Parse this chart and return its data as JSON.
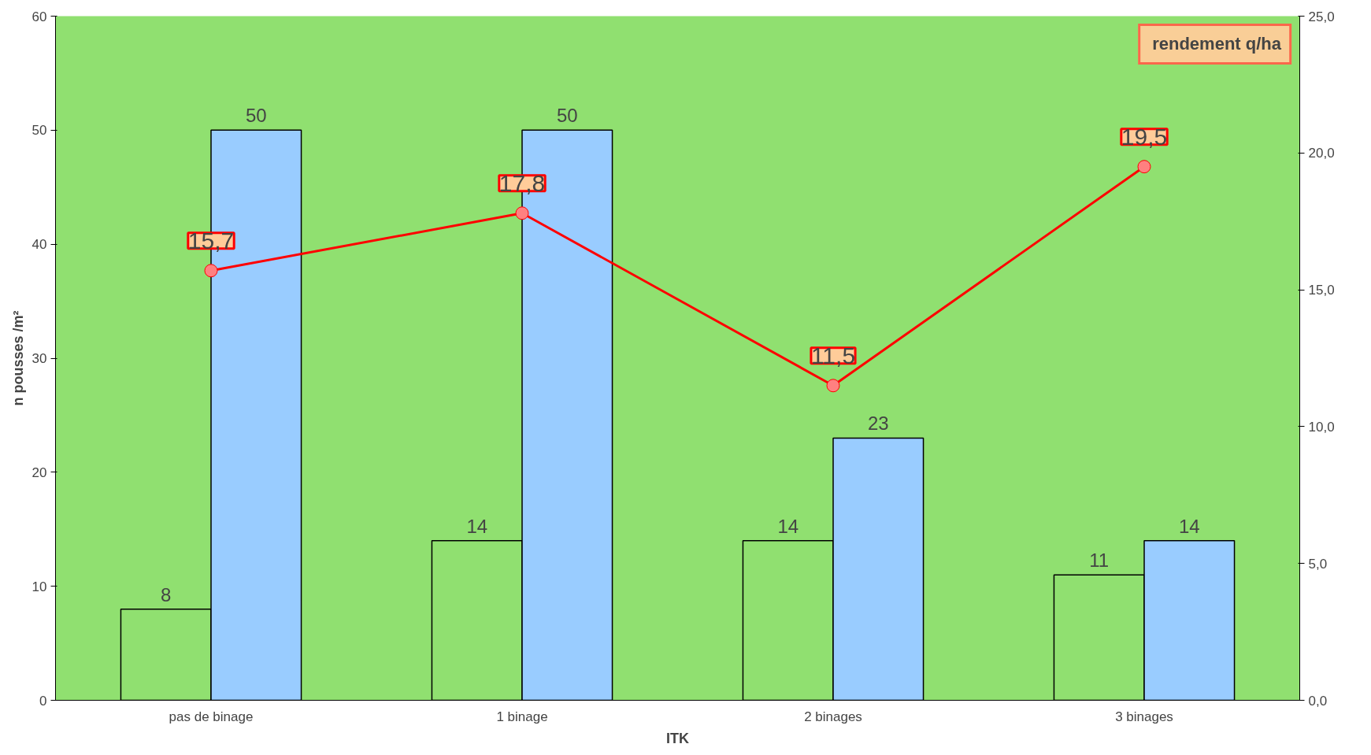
{
  "chart_data": {
    "type": "bar",
    "xlabel": "ITK",
    "ylabel": "n pousses /m²",
    "categories": [
      "pas de binage",
      "1 binage",
      "2 binages",
      "3 binages"
    ],
    "series": [
      {
        "color": "#90e070",
        "values": [
          8,
          14,
          14,
          11
        ]
      },
      {
        "color": "#99ccff",
        "values": [
          50,
          50,
          23,
          14
        ]
      },
      {
        "type": "line",
        "name": "rendement q/ha",
        "axis": "y2",
        "color": "#ff0000",
        "values": [
          15.7,
          17.8,
          11.5,
          19.5
        ],
        "value_labels": [
          "15,7",
          "17,8",
          "11,5",
          "19,5"
        ]
      }
    ],
    "ylim": [
      0,
      60
    ],
    "yticks": [
      0,
      10,
      20,
      30,
      40,
      50,
      60
    ],
    "y2lim": [
      0,
      25
    ],
    "y2ticks": [
      {
        "value": 0,
        "label": "0,0"
      },
      {
        "value": 5,
        "label": "5,0"
      },
      {
        "value": 10,
        "label": "10,0"
      },
      {
        "value": 15,
        "label": "15,0"
      },
      {
        "value": 20,
        "label": "20,0"
      },
      {
        "value": 25,
        "label": "25,0"
      }
    ],
    "data_labels": true,
    "marker": "circle",
    "legend": "top right",
    "grid": false
  }
}
